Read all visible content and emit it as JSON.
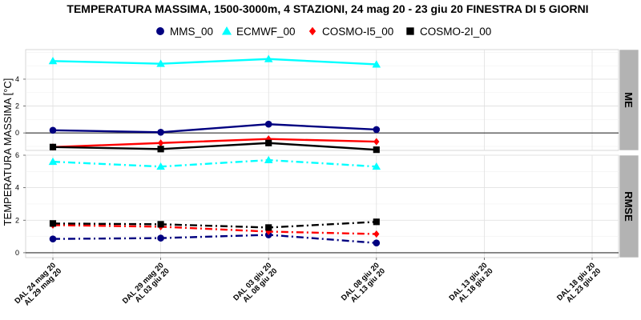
{
  "chart_data": {
    "type": "line",
    "title": "TEMPERATURA MASSIMA, 1500-3000m, 4 STAZIONI, 24 mag 20 - 23 giu 20 FINESTRA DI 5 GIORNI",
    "ylabel": "TEMPERATURA MASSIMA [°C]",
    "xlabel": "",
    "legend_position": "top",
    "grid": true,
    "categories": [
      [
        "DAL 24 mag 20",
        "AL 29 mag 20"
      ],
      [
        "DAL 29 mag 20",
        "AL 03 giu 20"
      ],
      [
        "DAL 03 giu 20",
        "AL 08 giu 20"
      ],
      [
        "DAL 08 giu 20",
        "AL 13 giu 20"
      ],
      [
        "DAL 13 giu 20",
        "AL 18 giu 20"
      ],
      [
        "DAL 18 giu 20",
        "AL 23 giu 20"
      ]
    ],
    "legend": [
      {
        "name": "MMS_00",
        "color": "#000080",
        "marker": "circle"
      },
      {
        "name": "ECMWF_00",
        "color": "#00ffff",
        "marker": "triangle"
      },
      {
        "name": "COSMO-I5_00",
        "color": "#ff0000",
        "marker": "diamond"
      },
      {
        "name": "COSMO-2I_00",
        "color": "#000000",
        "marker": "square"
      }
    ],
    "panels": [
      {
        "label": "ME",
        "ylim": [
          -1.3,
          6.2
        ],
        "yticks": [
          0,
          2,
          4
        ],
        "line_style": "solid",
        "series": [
          {
            "name": "MMS_00",
            "values": [
              0.2,
              0.05,
              0.65,
              0.25
            ]
          },
          {
            "name": "ECMWF_00",
            "values": [
              5.35,
              5.15,
              5.5,
              5.1
            ]
          },
          {
            "name": "COSMO-I5_00",
            "values": [
              -1.05,
              -0.75,
              -0.45,
              -0.65
            ]
          },
          {
            "name": "COSMO-2I_00",
            "values": [
              -1.05,
              -1.2,
              -0.75,
              -1.25
            ]
          }
        ]
      },
      {
        "label": "RMSE",
        "ylim": [
          -0.3,
          6.0
        ],
        "yticks": [
          0,
          2,
          4,
          6
        ],
        "line_style": "dashdot",
        "series": [
          {
            "name": "MMS_00",
            "values": [
              0.85,
              0.9,
              1.1,
              0.6
            ]
          },
          {
            "name": "ECMWF_00",
            "values": [
              5.6,
              5.3,
              5.7,
              5.3
            ]
          },
          {
            "name": "COSMO-I5_00",
            "values": [
              1.7,
              1.6,
              1.3,
              1.15
            ]
          },
          {
            "name": "COSMO-2I_00",
            "values": [
              1.8,
              1.75,
              1.55,
              1.9
            ]
          }
        ]
      }
    ]
  }
}
